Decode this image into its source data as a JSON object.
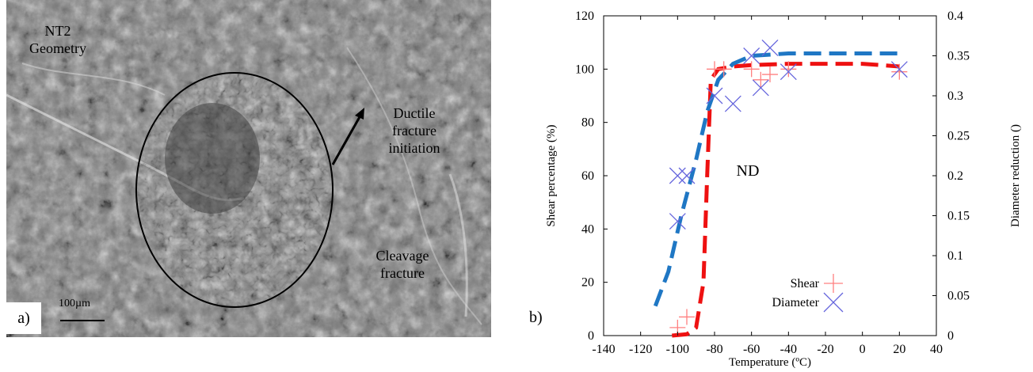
{
  "panel_a": {
    "label": "a)",
    "title_line1": "NT2",
    "title_line2": "Geometry",
    "ductile_line1": "Ductile",
    "ductile_line2": "fracture",
    "ductile_line3": "initiation",
    "cleavage_line1": "Cleavage",
    "cleavage_line2": "fracture",
    "scale_label": "100µm"
  },
  "panel_b": {
    "label": "b)"
  },
  "chart_data": {
    "type": "scatter",
    "xlabel": "Temperature (ºC)",
    "ylabel": "Shear percentage (%)",
    "y2label": "Diameter reduction ()",
    "xlim": [
      -140,
      40
    ],
    "ylim": [
      0,
      120
    ],
    "y2lim": [
      0,
      0.4
    ],
    "x_ticks": [
      -140,
      -120,
      -100,
      -80,
      -60,
      -40,
      -20,
      0,
      20,
      40
    ],
    "y_ticks": [
      0,
      20,
      40,
      60,
      80,
      100,
      120
    ],
    "y2_ticks": [
      "0",
      "0.05",
      "0.1",
      "0.15",
      "0.2",
      "0.25",
      "0.3",
      "0.35",
      "0.4"
    ],
    "annotation": "ND",
    "legend_position": "bottom-right",
    "series": [
      {
        "name": "Shear",
        "axis": "left",
        "marker": "plus",
        "color": "#ff8080",
        "points": [
          [
            -100,
            3
          ],
          [
            -95,
            7
          ],
          [
            -80,
            100
          ],
          [
            -75,
            100
          ],
          [
            -60,
            100
          ],
          [
            -55,
            96
          ],
          [
            -50,
            98
          ],
          [
            -40,
            100
          ],
          [
            20,
            99
          ]
        ],
        "fit_color": "#ee1111",
        "fit": [
          [
            -103,
            0
          ],
          [
            -95,
            0.5
          ],
          [
            -90,
            3
          ],
          [
            -86,
            20
          ],
          [
            -84,
            60
          ],
          [
            -82,
            96
          ],
          [
            -78,
            100
          ],
          [
            -70,
            101
          ],
          [
            -60,
            101.5
          ],
          [
            -40,
            102
          ],
          [
            0,
            102
          ],
          [
            20,
            101
          ]
        ]
      },
      {
        "name": "Diameter",
        "axis": "right",
        "marker": "cross",
        "color": "#6666dd",
        "points": [
          [
            -100,
            0.2
          ],
          [
            -95,
            0.2
          ],
          [
            -100,
            0.143
          ],
          [
            -80,
            0.3
          ],
          [
            -70,
            0.29
          ],
          [
            -60,
            0.35
          ],
          [
            -55,
            0.31
          ],
          [
            -50,
            0.36
          ],
          [
            -40,
            0.33
          ],
          [
            20,
            0.333
          ]
        ],
        "fit_color": "#1f77c4",
        "fit": [
          [
            -112,
            0.037
          ],
          [
            -105,
            0.08
          ],
          [
            -98,
            0.15
          ],
          [
            -90,
            0.22
          ],
          [
            -84,
            0.28
          ],
          [
            -78,
            0.32
          ],
          [
            -70,
            0.34
          ],
          [
            -60,
            0.35
          ],
          [
            -40,
            0.353
          ],
          [
            0,
            0.353
          ],
          [
            20,
            0.353
          ]
        ]
      }
    ]
  }
}
